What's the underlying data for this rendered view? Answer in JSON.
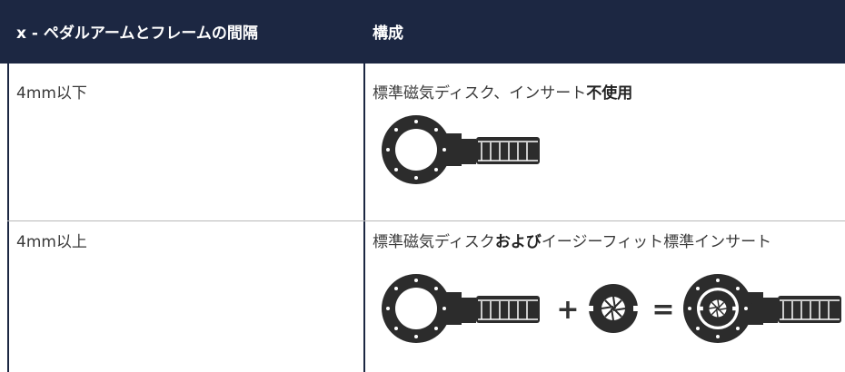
{
  "table": {
    "header": [
      "x - ペダルアームとフレームの間隔",
      "構成"
    ],
    "rows": [
      [
        "4mm以下",
        [
          "標準磁気ディスク、インサート",
          "不使用"
        ]
      ],
      [
        "4mm以上",
        [
          "標準磁気ディスク",
          "および",
          "イージーフィット標準インサート"
        ]
      ]
    ],
    "operators": [
      "+",
      "="
    ]
  }
}
